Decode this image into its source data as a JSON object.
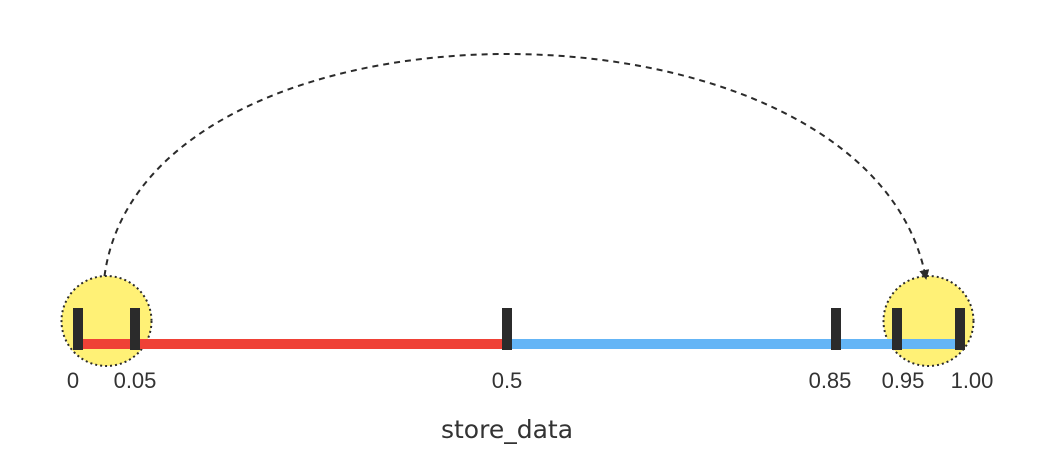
{
  "diagram": {
    "caption": "store_data",
    "colors": {
      "left_segment": "#ef4136",
      "right_segment": "#64b5f6",
      "highlight": "#fff176",
      "marker": "#2b2b2b",
      "arrow": "#2b2b2b"
    },
    "ticks": [
      {
        "value": 0,
        "label": "0"
      },
      {
        "value": 0.05,
        "label": "0.05"
      },
      {
        "value": 0.5,
        "label": "0.5"
      },
      {
        "value": 0.85,
        "label": "0.85"
      },
      {
        "value": 0.95,
        "label": "0.95"
      },
      {
        "value": 1.0,
        "label": "1.00"
      }
    ],
    "segments": [
      {
        "name": "left",
        "from": 0,
        "to": 0.5
      },
      {
        "name": "right",
        "from": 0.5,
        "to": 1.0
      }
    ],
    "highlight_ranges": [
      {
        "from": 0,
        "to": 0.05
      },
      {
        "from": 0.95,
        "to": 1.0
      }
    ],
    "arrow": {
      "from_range": 0,
      "to_range": 1,
      "style": "dashed"
    }
  }
}
